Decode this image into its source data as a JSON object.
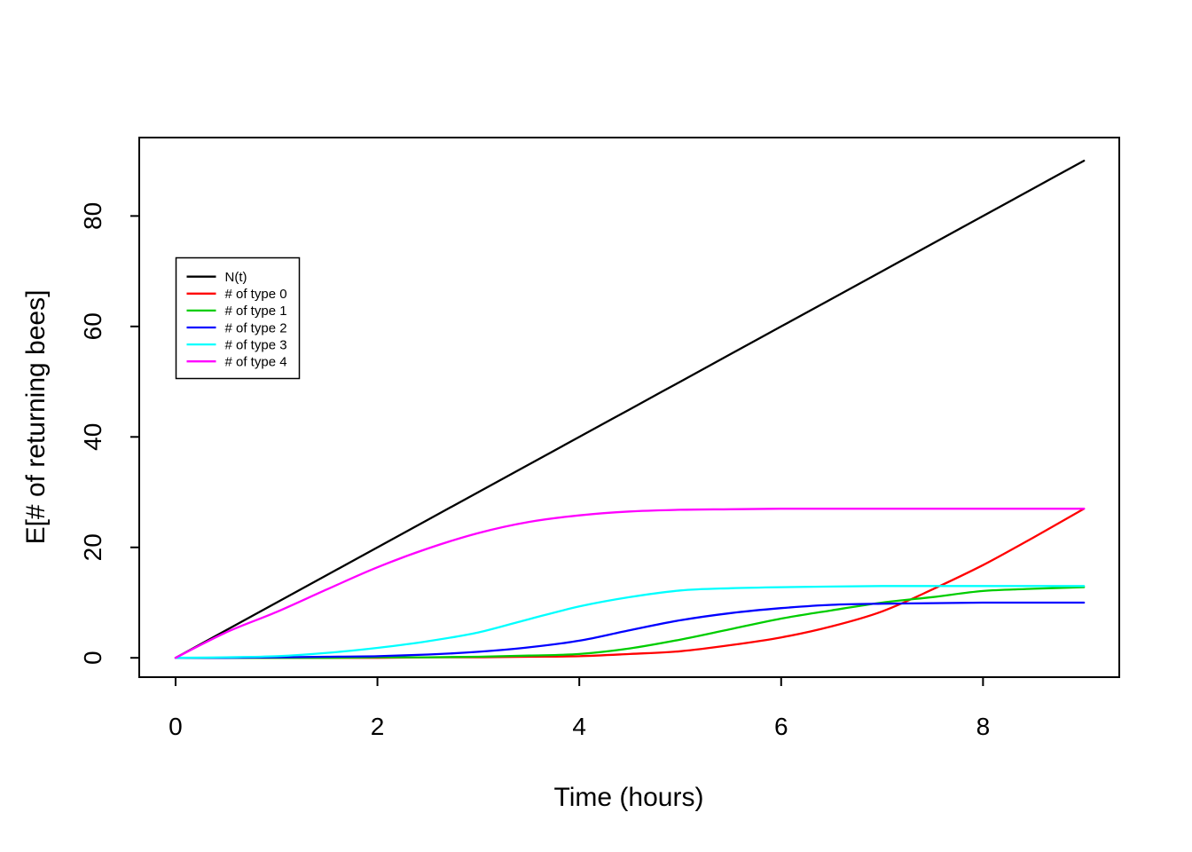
{
  "chart_data": {
    "type": "line",
    "title": "",
    "xlabel": "Time (hours)",
    "ylabel": "E[# of returning bees]",
    "x_ticks": [
      0,
      2,
      4,
      6,
      8
    ],
    "y_ticks": [
      0,
      20,
      40,
      60,
      80
    ],
    "xlim": [
      -0.36,
      9.35
    ],
    "ylim": [
      -3.5,
      94.2
    ],
    "grid": false,
    "legend_position": "upper-left-inside",
    "x": [
      0,
      0.5,
      1,
      1.5,
      2,
      2.5,
      3,
      3.5,
      4,
      4.5,
      5,
      5.5,
      6,
      6.5,
      7,
      7.5,
      8,
      8.5,
      9
    ],
    "series": [
      {
        "name": "N(t)",
        "color": "#000000",
        "values": [
          0,
          5,
          10,
          15,
          20,
          25,
          30,
          35,
          40,
          45,
          50,
          55,
          60,
          65,
          70,
          75,
          80,
          85,
          90
        ]
      },
      {
        "name": "# of type 0",
        "color": "#FF0000",
        "values": [
          0,
          0,
          0,
          0,
          0,
          0.1,
          0.1,
          0.2,
          0.3,
          0.7,
          1.2,
          2.3,
          3.7,
          5.7,
          8.4,
          12.4,
          16.8,
          21.8,
          27
        ]
      },
      {
        "name": "# of type 1",
        "color": "#00CD00",
        "values": [
          0,
          0,
          0,
          0,
          0.1,
          0.1,
          0.2,
          0.4,
          0.7,
          1.7,
          3.3,
          5.2,
          7.1,
          8.6,
          10,
          11,
          12.1,
          12.5,
          12.8
        ]
      },
      {
        "name": "# of type 2",
        "color": "#0000FF",
        "values": [
          0,
          0,
          0.1,
          0.2,
          0.3,
          0.6,
          1.1,
          1.9,
          3.1,
          5,
          6.8,
          8.1,
          9,
          9.6,
          9.8,
          9.9,
          10,
          10,
          10
        ]
      },
      {
        "name": "# of type 3",
        "color": "#00FFFF",
        "values": [
          0,
          0.1,
          0.3,
          0.9,
          1.8,
          3,
          4.6,
          7,
          9.3,
          11,
          12.2,
          12.6,
          12.8,
          12.9,
          13,
          13,
          13,
          13,
          13
        ]
      },
      {
        "name": "# of type 4",
        "color": "#FF00FF",
        "values": [
          0,
          4.6,
          8.3,
          12.4,
          16.4,
          19.8,
          22.6,
          24.6,
          25.8,
          26.5,
          26.8,
          26.9,
          27,
          27,
          27,
          27,
          27,
          27,
          27
        ]
      }
    ]
  }
}
